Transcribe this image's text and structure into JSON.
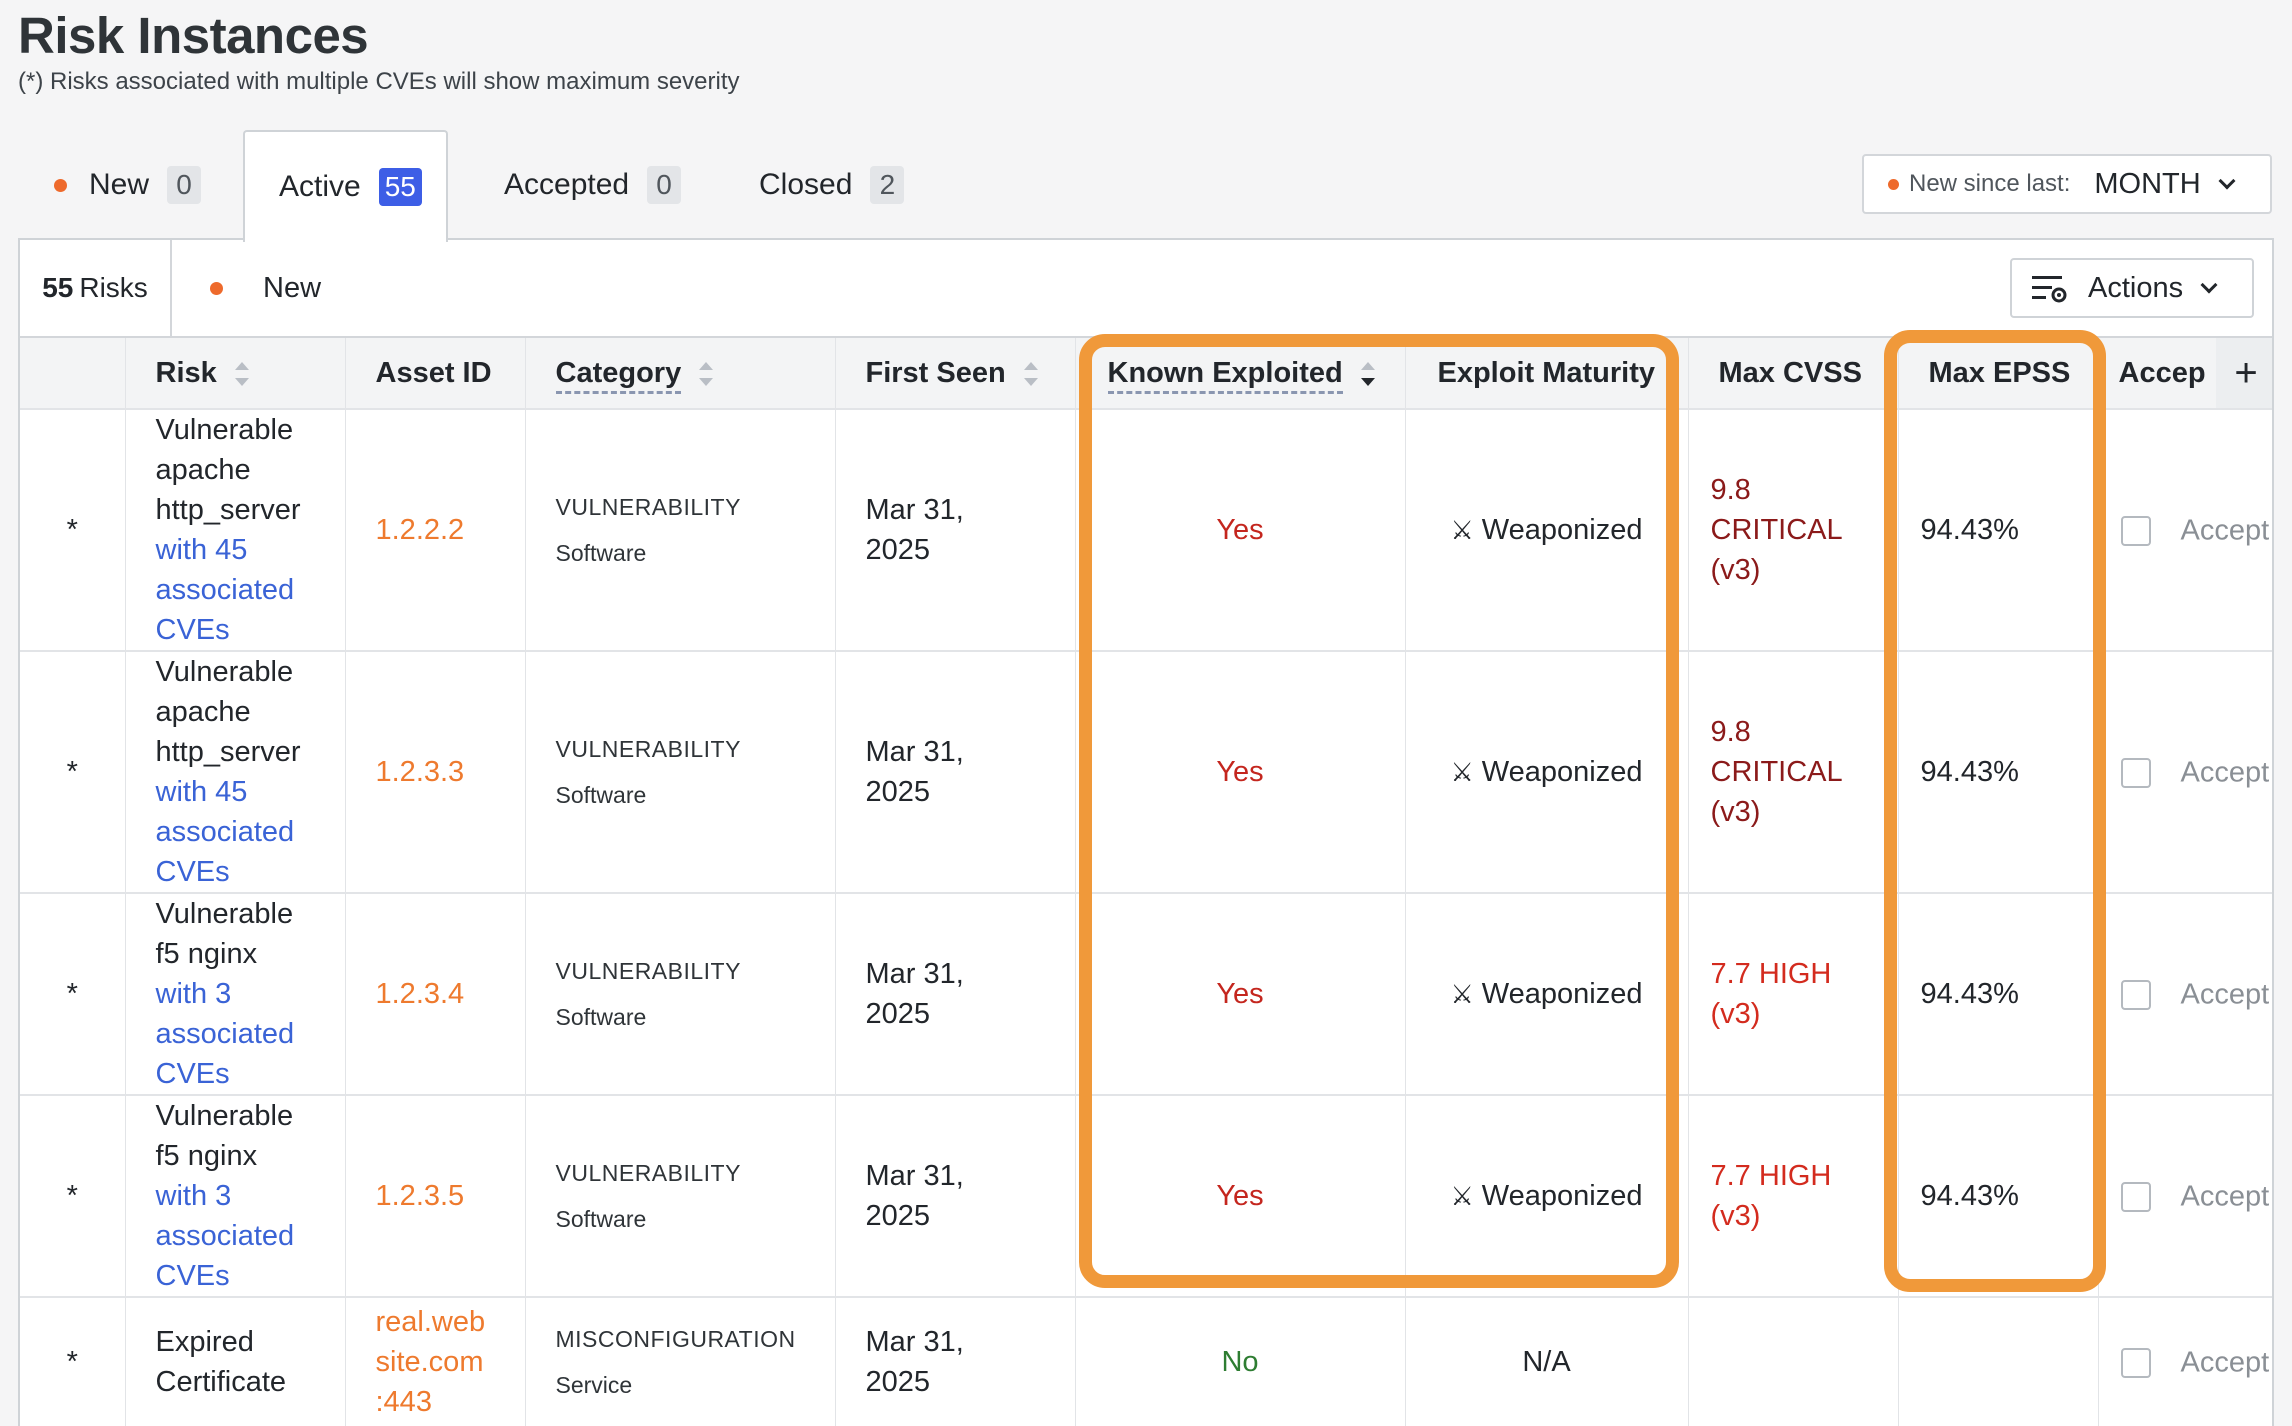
{
  "header": {
    "title": "Risk Instances",
    "subtitle": "(*) Risks associated with multiple CVEs will show maximum severity"
  },
  "tabs": [
    {
      "label": "New",
      "count": "0"
    },
    {
      "label": "Active",
      "count": "55"
    },
    {
      "label": "Accepted",
      "count": "0"
    },
    {
      "label": "Closed",
      "count": "2"
    }
  ],
  "since_select": {
    "label": "New since last:",
    "value": "MONTH"
  },
  "toolbar": {
    "count_number": "55",
    "count_label": "Risks",
    "filter_new_label": "New",
    "actions_label": "Actions"
  },
  "columns": {
    "risk": "Risk",
    "asset_id": "Asset ID",
    "category": "Category",
    "first_seen": "First Seen",
    "known_exploited": "Known Exploited",
    "exploit_maturity": "Exploit Maturity",
    "max_cvss": "Max CVSS",
    "max_epss": "Max EPSS",
    "accept": "Accep"
  },
  "rows": [
    {
      "star": "*",
      "risk_lines": [
        "Vulnerable",
        "apache",
        "http_server"
      ],
      "risk_link_lines": [
        "with 45",
        "associated",
        "CVEs"
      ],
      "asset_lines": [
        "1.2.2.2"
      ],
      "category": "VULNERABILITY",
      "subcategory": "Software",
      "first_seen_lines": [
        "Mar 31,",
        "2025"
      ],
      "known_exploited": "Yes",
      "exploit_maturity": "Weaponized",
      "cvss_lines": [
        "9.8",
        "CRITICAL",
        "(v3)"
      ],
      "cvss_level": "critical",
      "epss": "94.43%",
      "accept_label": "Accept"
    },
    {
      "star": "*",
      "risk_lines": [
        "Vulnerable",
        "apache",
        "http_server"
      ],
      "risk_link_lines": [
        "with 45",
        "associated",
        "CVEs"
      ],
      "asset_lines": [
        "1.2.3.3"
      ],
      "category": "VULNERABILITY",
      "subcategory": "Software",
      "first_seen_lines": [
        "Mar 31,",
        "2025"
      ],
      "known_exploited": "Yes",
      "exploit_maturity": "Weaponized",
      "cvss_lines": [
        "9.8",
        "CRITICAL",
        "(v3)"
      ],
      "cvss_level": "critical",
      "epss": "94.43%",
      "accept_label": "Accept"
    },
    {
      "star": "*",
      "risk_lines": [
        "Vulnerable",
        "f5 nginx"
      ],
      "risk_link_lines": [
        "with 3",
        "associated",
        "CVEs"
      ],
      "asset_lines": [
        "1.2.3.4"
      ],
      "category": "VULNERABILITY",
      "subcategory": "Software",
      "first_seen_lines": [
        "Mar 31,",
        "2025"
      ],
      "known_exploited": "Yes",
      "exploit_maturity": "Weaponized",
      "cvss_lines": [
        "7.7 HIGH",
        "(v3)"
      ],
      "cvss_level": "high",
      "epss": "94.43%",
      "accept_label": "Accept"
    },
    {
      "star": "*",
      "risk_lines": [
        "Vulnerable",
        "f5 nginx"
      ],
      "risk_link_lines": [
        "with 3",
        "associated",
        "CVEs"
      ],
      "asset_lines": [
        "1.2.3.5"
      ],
      "category": "VULNERABILITY",
      "subcategory": "Software",
      "first_seen_lines": [
        "Mar 31,",
        "2025"
      ],
      "known_exploited": "Yes",
      "exploit_maturity": "Weaponized",
      "cvss_lines": [
        "7.7 HIGH",
        "(v3)"
      ],
      "cvss_level": "high",
      "epss": "94.43%",
      "accept_label": "Accept"
    },
    {
      "star": "*",
      "risk_lines": [
        "Expired",
        "Certificate"
      ],
      "risk_link_lines": [],
      "asset_lines": [
        "real.web",
        "site.com",
        ":443"
      ],
      "category": "MISCONFIGURATION",
      "subcategory": "Service",
      "first_seen_lines": [
        "Mar 31,",
        "2025"
      ],
      "known_exploited": "No",
      "exploit_maturity": "N/A",
      "cvss_lines": [],
      "cvss_level": "none",
      "epss": "",
      "accept_label": "Accept"
    }
  ],
  "colors": {
    "accent": "#3d5ee6",
    "new_dot": "#ee6a2c",
    "highlight": "#f0993a",
    "yes": "#c4261e",
    "no": "#2e7d32",
    "critical": "#8b1a1a",
    "high": "#d32b1e",
    "asset": "#ee7a2e",
    "link": "#3a63d6"
  },
  "icons": {
    "weaponized": "crossed-swords-icon",
    "sort": "sort-icon",
    "actions": "filter-settings-icon",
    "add_column": "plus-icon"
  }
}
